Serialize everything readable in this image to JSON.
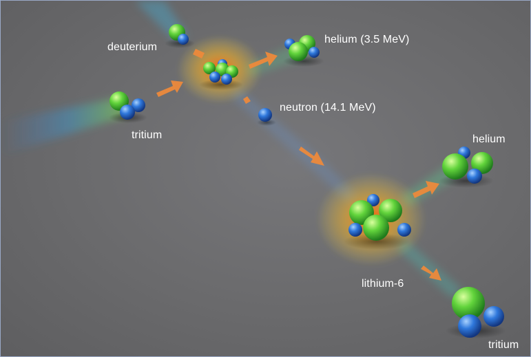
{
  "labels": {
    "deuterium": "deuterium",
    "helium_fast": "helium (3.5 MeV)",
    "neutron": "neutron (14.1 MeV)",
    "tritium_in": "tritium",
    "helium_out": "helium",
    "lithium": "lithium-6",
    "tritium_out": "tritium"
  },
  "colors": {
    "background": "#6a6a6c",
    "proton": "#5fd43a",
    "neutron": "#2f6fd6",
    "arrow": "#f08a3a",
    "glow": "#ff6a1a",
    "label_text": "#ffffff"
  }
}
